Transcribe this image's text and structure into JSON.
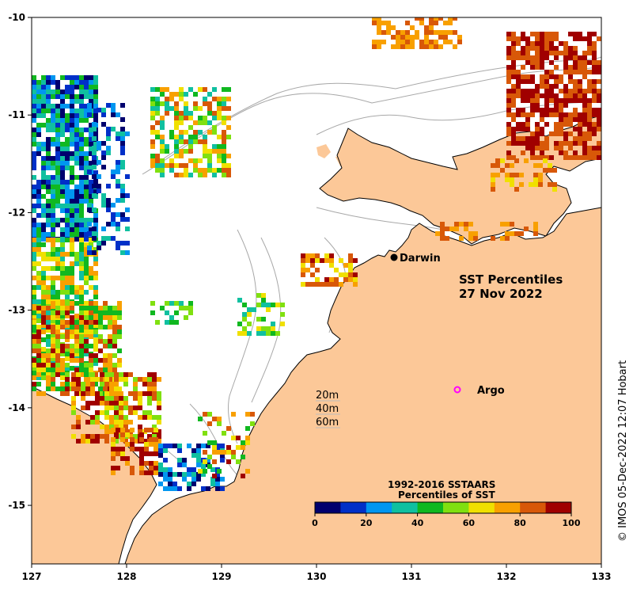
{
  "map": {
    "title_line1": "SST Percentiles",
    "title_line2": "27 Nov 2022",
    "x_ticks": [
      "127",
      "128",
      "129",
      "130",
      "131",
      "132",
      "133"
    ],
    "y_ticks": [
      "-10",
      "-11",
      "-12",
      "-13",
      "-14",
      "-15"
    ],
    "lon_range": [
      127,
      133
    ],
    "lat_range": [
      -15.6,
      -10
    ],
    "land_color": "#fcc898",
    "sea_color": "#ffffff",
    "places": [
      {
        "name": "Darwin",
        "lon": 130.84,
        "lat": -12.46,
        "marker": "filled-dot"
      },
      {
        "name": "Argo",
        "lon": 131.5,
        "lat": -13.81,
        "marker": "open-circle"
      }
    ],
    "depth_legend": [
      "20m",
      "40m",
      "60m"
    ]
  },
  "colorbar": {
    "title_line1": "1992-2016 SSTAARS",
    "title_line2": "Percentiles of SST",
    "ticks": [
      "0",
      "20",
      "40",
      "60",
      "80",
      "100"
    ],
    "colors": [
      "#00006e",
      "#0030c8",
      "#0096f0",
      "#10c0a0",
      "#10b820",
      "#80e010",
      "#f0e000",
      "#f8a000",
      "#d85808",
      "#a00000"
    ]
  },
  "credit": "© IMOS 05-Dec-2022 12:07 Hobart"
}
